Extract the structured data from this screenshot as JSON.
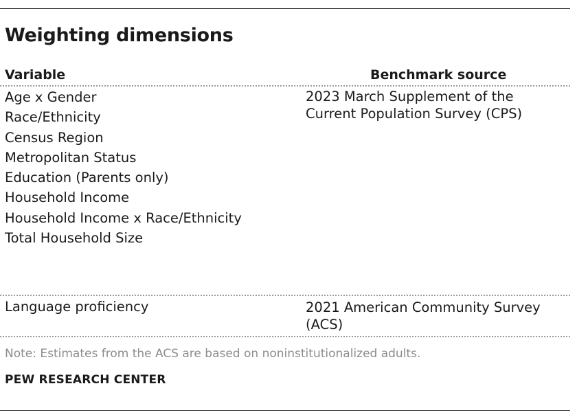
{
  "title": "Weighting dimensions",
  "headers": {
    "variable": "Variable",
    "source": "Benchmark source"
  },
  "rows": [
    {
      "variables": [
        "Age x Gender",
        "Race/Ethnicity",
        "Census Region",
        "Metropolitan Status",
        "Education (Parents only)",
        "Household Income",
        "Household Income x Race/Ethnicity",
        "Total Household Size"
      ],
      "source": "2023 March Supplement of the Current Population Survey (CPS)"
    },
    {
      "variables": [
        "Language proficiency"
      ],
      "source": "2021 American Community Survey (ACS)"
    }
  ],
  "note": "Note: Estimates from the ACS are based on noninstitutionalized adults.",
  "credit": "PEW RESEARCH CENTER"
}
